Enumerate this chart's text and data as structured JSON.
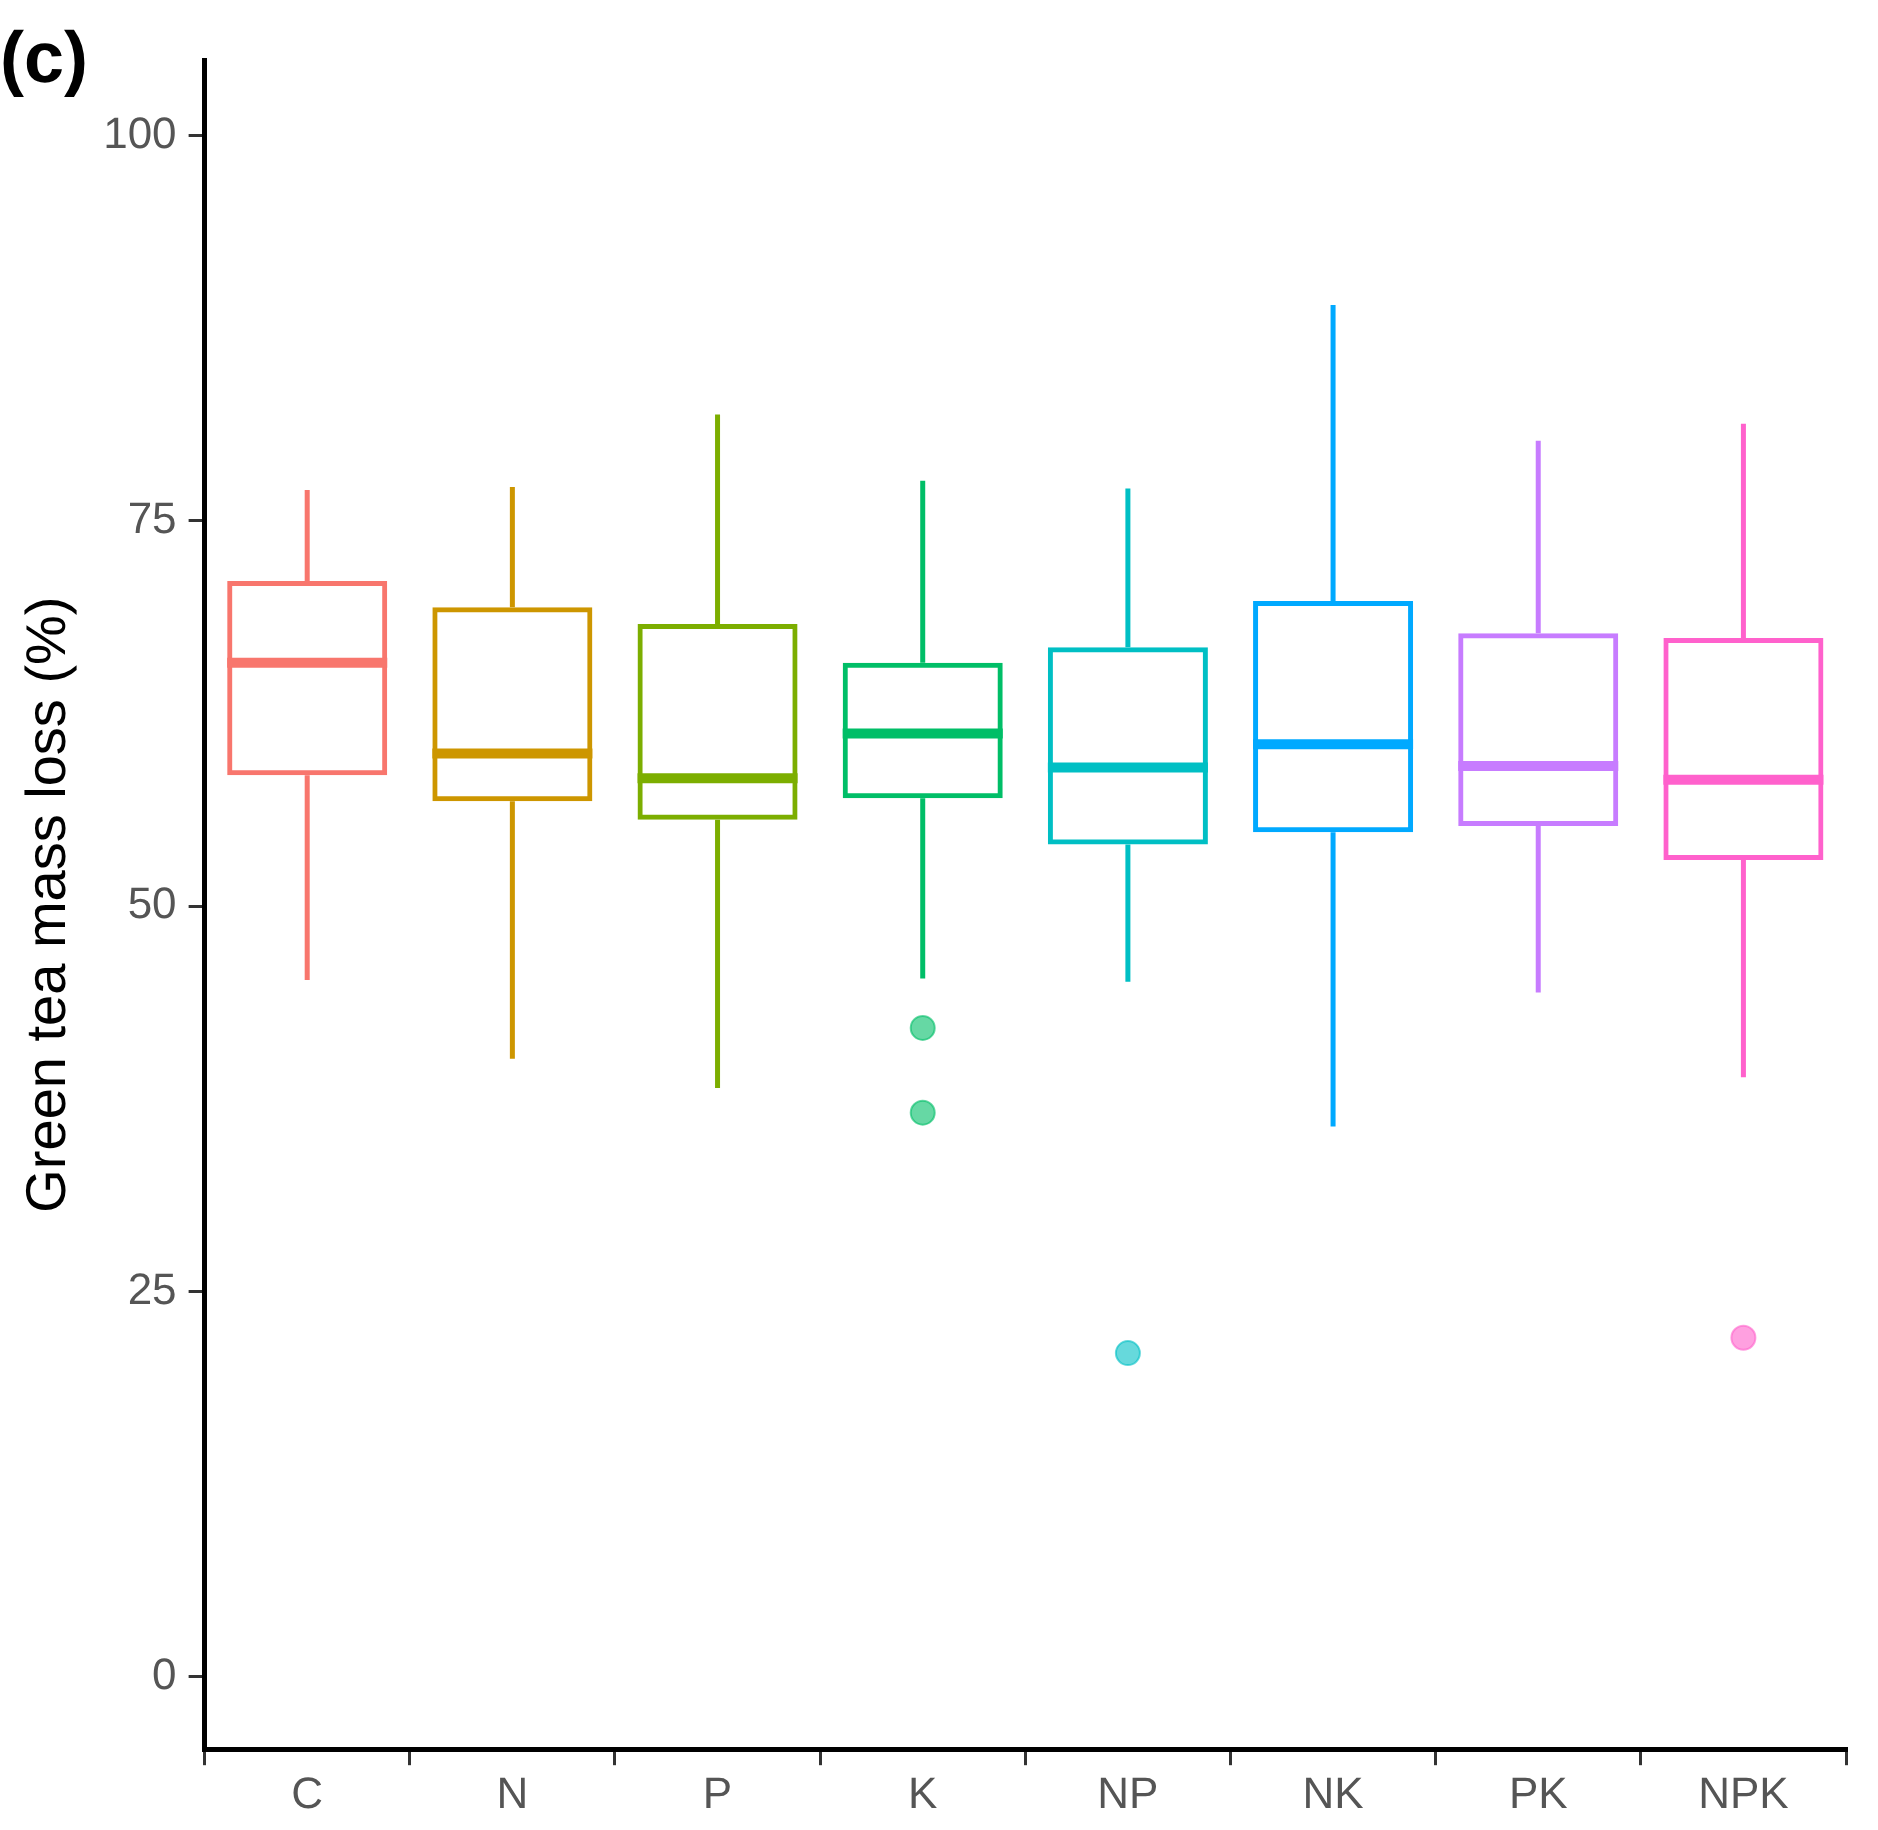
{
  "chart_data": {
    "type": "box",
    "ylabel": "Green tea mass loss (%)",
    "annotations": [
      "(c)"
    ],
    "categories": [
      "C",
      "N",
      "P",
      "K",
      "NP",
      "NK",
      "PK",
      "NPK"
    ],
    "colors": [
      "#f8766d",
      "#cd9600",
      "#7cae00",
      "#00be67",
      "#00bfc4",
      "#00a9ff",
      "#c77cff",
      "#ff61cc"
    ],
    "boxes": [
      {
        "low": 45.2,
        "q1": 58.5,
        "median": 65.8,
        "q3": 71.1,
        "high": 77.0
      },
      {
        "low": 40.1,
        "q1": 56.8,
        "median": 59.9,
        "q3": 69.4,
        "high": 77.2
      },
      {
        "low": 38.2,
        "q1": 55.6,
        "median": 58.3,
        "q3": 68.3,
        "high": 81.9
      },
      {
        "low": 45.3,
        "q1": 57.0,
        "median": 61.2,
        "q3": 65.8,
        "high": 77.6,
        "outliers": [
          42.1,
          36.6
        ]
      },
      {
        "low": 45.1,
        "q1": 54.0,
        "median": 59.0,
        "q3": 66.8,
        "high": 77.1,
        "outliers": [
          21.0
        ]
      },
      {
        "low": 35.7,
        "q1": 54.8,
        "median": 60.5,
        "q3": 69.8,
        "high": 89.0
      },
      {
        "low": 44.4,
        "q1": 55.2,
        "median": 59.1,
        "q3": 67.7,
        "high": 80.2
      },
      {
        "low": 38.9,
        "q1": 53.0,
        "median": 58.2,
        "q3": 67.4,
        "high": 81.3,
        "outliers": [
          22.0
        ]
      }
    ],
    "ylim": [
      -4.7,
      104.9
    ],
    "yticks": [
      0,
      25,
      50,
      75,
      100
    ]
  }
}
